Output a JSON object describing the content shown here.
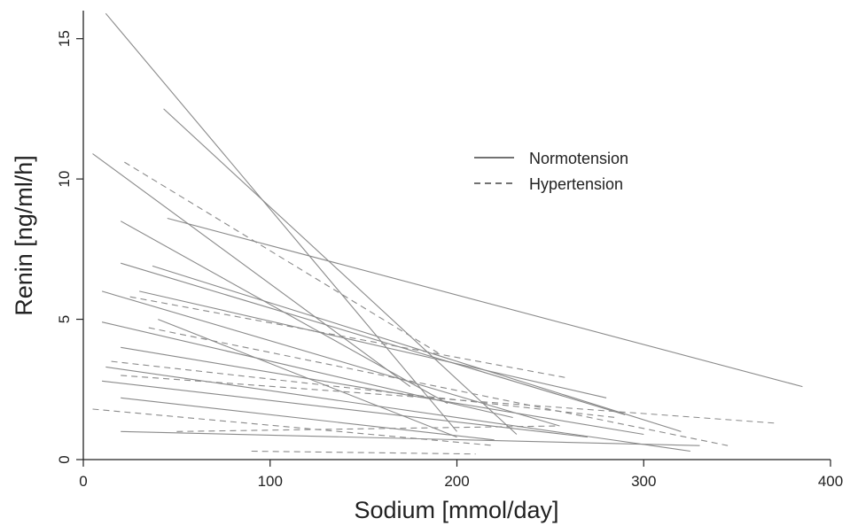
{
  "chart_data": {
    "type": "line",
    "title": "",
    "xlabel": "Sodium [mmol/day]",
    "ylabel": "Renin [ng/ml/h]",
    "xlim": [
      0,
      400
    ],
    "ylim": [
      0,
      16
    ],
    "xticks": [
      "0",
      "100",
      "200",
      "300",
      "400"
    ],
    "yticks": [
      "0",
      "5",
      "10",
      "15"
    ],
    "grid": false,
    "legend_position": "top-right",
    "legend": [
      {
        "name": "Normotension",
        "style": "solid"
      },
      {
        "name": "Hypertension",
        "style": "dashed"
      }
    ],
    "colors": {
      "line": "#8a8a8a",
      "axis": "#222222",
      "text": "#222222"
    },
    "series": [
      {
        "name": "Normotension",
        "style": "solid",
        "segments": [
          [
            [
              12,
              15.9
            ],
            [
              200,
              1.0
            ]
          ],
          [
            [
              43,
              12.5
            ],
            [
              232,
              0.9
            ]
          ],
          [
            [
              5,
              10.9
            ],
            [
              175,
              2.6
            ]
          ],
          [
            [
              45,
              8.6
            ],
            [
              385,
              2.6
            ]
          ],
          [
            [
              20,
              8.5
            ],
            [
              195,
              2.0
            ]
          ],
          [
            [
              20,
              7.0
            ],
            [
              290,
              1.6
            ]
          ],
          [
            [
              37,
              6.9
            ],
            [
              320,
              1.0
            ]
          ],
          [
            [
              10,
              6.0
            ],
            [
              255,
              1.2
            ]
          ],
          [
            [
              30,
              6.0
            ],
            [
              280,
              2.2
            ]
          ],
          [
            [
              40,
              5.0
            ],
            [
              200,
              0.8
            ]
          ],
          [
            [
              10,
              4.9
            ],
            [
              230,
              1.5
            ]
          ],
          [
            [
              20,
              4.0
            ],
            [
              300,
              0.9
            ]
          ],
          [
            [
              12,
              3.3
            ],
            [
              325,
              0.3
            ]
          ],
          [
            [
              10,
              2.8
            ],
            [
              270,
              0.8
            ]
          ],
          [
            [
              20,
              2.2
            ],
            [
              220,
              0.7
            ]
          ],
          [
            [
              20,
              1.0
            ],
            [
              330,
              0.5
            ]
          ]
        ]
      },
      {
        "name": "Hypertension",
        "style": "dashed",
        "segments": [
          [
            [
              22,
              10.6
            ],
            [
              190,
              3.8
            ]
          ],
          [
            [
              25,
              5.8
            ],
            [
              260,
              2.9
            ]
          ],
          [
            [
              35,
              4.7
            ],
            [
              345,
              0.5
            ]
          ],
          [
            [
              15,
              3.5
            ],
            [
              285,
              1.5
            ]
          ],
          [
            [
              20,
              3.0
            ],
            [
              370,
              1.3
            ]
          ],
          [
            [
              5,
              1.8
            ],
            [
              220,
              0.5
            ]
          ],
          [
            [
              50,
              1.0
            ],
            [
              255,
              1.2
            ]
          ],
          [
            [
              90,
              0.3
            ],
            [
              210,
              0.2
            ]
          ]
        ]
      }
    ]
  }
}
